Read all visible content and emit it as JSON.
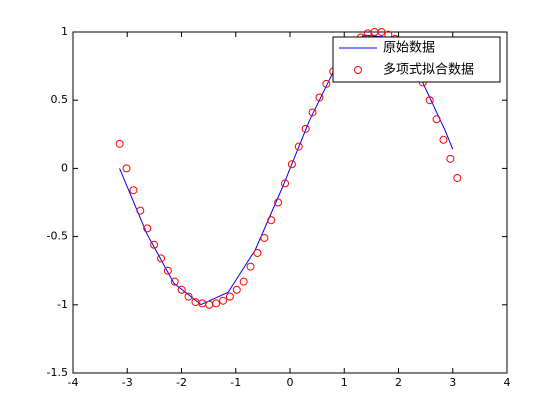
{
  "chart_data": {
    "type": "line",
    "series": [
      {
        "name": "原始数据",
        "color": "#0000ff",
        "marker": "none",
        "x": [
          -3.1416,
          -2.6416,
          -2.1416,
          -1.6416,
          -1.1416,
          -0.6416,
          -0.1416,
          0.3584,
          0.8584,
          1.3584,
          1.8584,
          2.3584,
          2.8584,
          3.0
        ],
        "values": [
          0.0,
          -0.477,
          -0.841,
          -0.998,
          -0.909,
          -0.598,
          -0.141,
          0.351,
          0.757,
          0.978,
          0.959,
          0.705,
          0.279,
          0.141
        ]
      },
      {
        "name": "多项式拟合数据",
        "color": "#ff0000",
        "marker": "circle",
        "x": [
          -3.14,
          -3.013,
          -2.886,
          -2.759,
          -2.632,
          -2.505,
          -2.378,
          -2.251,
          -2.124,
          -1.997,
          -1.87,
          -1.743,
          -1.616,
          -1.489,
          -1.362,
          -1.235,
          -1.108,
          -0.981,
          -0.854,
          -0.727,
          -0.6,
          -0.473,
          -0.346,
          -0.219,
          -0.092,
          0.035,
          0.162,
          0.289,
          0.416,
          0.543,
          0.67,
          0.797,
          0.924,
          1.051,
          1.178,
          1.305,
          1.432,
          1.559,
          1.686,
          1.813,
          1.94,
          2.067,
          2.194,
          2.321,
          2.448,
          2.575,
          2.702,
          2.829,
          2.956,
          3.083
        ],
        "values": [
          0.18,
          0.0,
          -0.16,
          -0.31,
          -0.44,
          -0.56,
          -0.66,
          -0.75,
          -0.83,
          -0.89,
          -0.94,
          -0.98,
          -0.99,
          -1.0,
          -0.99,
          -0.97,
          -0.94,
          -0.89,
          -0.83,
          -0.72,
          -0.62,
          -0.51,
          -0.38,
          -0.25,
          -0.11,
          0.03,
          0.16,
          0.29,
          0.41,
          0.52,
          0.62,
          0.71,
          0.79,
          0.86,
          0.92,
          0.96,
          0.99,
          1.0,
          1.0,
          0.98,
          0.95,
          0.9,
          0.83,
          0.74,
          0.63,
          0.5,
          0.36,
          0.21,
          0.07,
          -0.07
        ]
      }
    ],
    "xlim": [
      -4,
      4
    ],
    "xticks": [
      -4,
      -3,
      -2,
      -1,
      0,
      1,
      2,
      3,
      4
    ],
    "ylim": [
      -1.5,
      1
    ],
    "yticks": [
      -1.5,
      -1,
      -0.5,
      0,
      0.5,
      1
    ],
    "grid": false,
    "legend": "top-right"
  }
}
